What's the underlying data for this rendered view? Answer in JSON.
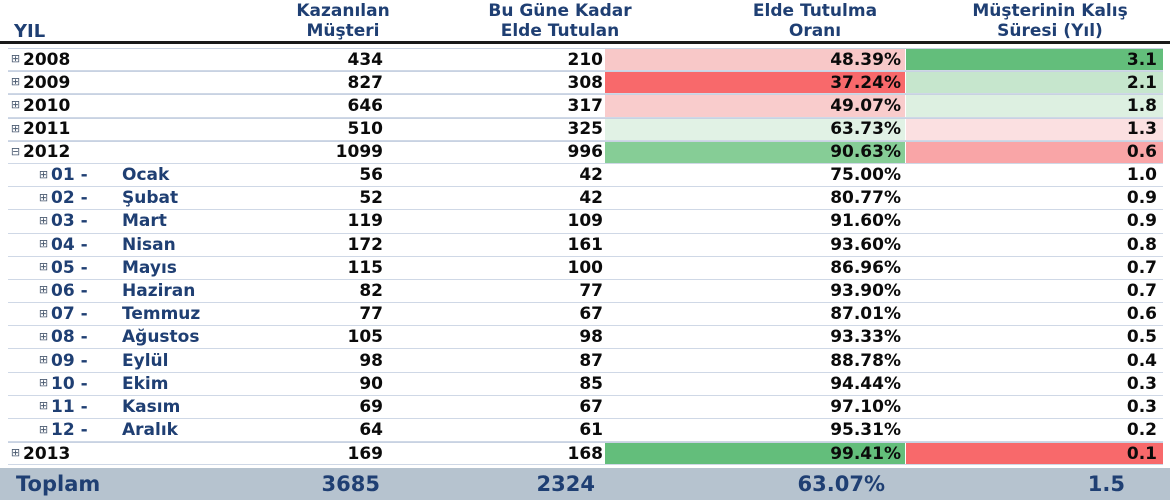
{
  "header": {
    "col0": "YIL",
    "col1_line1": "Kazanılan",
    "col1_line2": "Müşteri",
    "col2_line1": "Bu Güne Kadar",
    "col2_line2": "Elde Tutulan",
    "col3_line1": "Elde Tutulma",
    "col3_line2": "Oranı",
    "col4_line1": "Müşterinin Kalış",
    "col4_line2": "Süresi (Yıl)"
  },
  "rows": [
    {
      "type": "year",
      "toggle": "⊞",
      "label": "2008",
      "v1": "434",
      "v2": "210",
      "v3": "48.39%",
      "v4": "3.1",
      "c3": "#f8c8c8",
      "c4": "#63be7b"
    },
    {
      "type": "year",
      "toggle": "⊞",
      "label": "2009",
      "v1": "827",
      "v2": "308",
      "v3": "37.24%",
      "v4": "2.1",
      "c3": "#f8696b",
      "c4": "#c6e6cd"
    },
    {
      "type": "year",
      "toggle": "⊞",
      "label": "2010",
      "v1": "646",
      "v2": "317",
      "v3": "49.07%",
      "v4": "1.8",
      "c3": "#f9cccc",
      "c4": "#ddf0e1"
    },
    {
      "type": "year",
      "toggle": "⊞",
      "label": "2011",
      "v1": "510",
      "v2": "325",
      "v3": "63.73%",
      "v4": "1.3",
      "c3": "#e1f2e5",
      "c4": "#fbe0e1"
    },
    {
      "type": "year",
      "toggle": "⊟",
      "label": "2012",
      "v1": "1099",
      "v2": "996",
      "v3": "90.63%",
      "v4": "0.6",
      "c3": "#86cd96",
      "c4": "#f9a5a7"
    },
    {
      "type": "month",
      "toggle": "⊞",
      "num": "01 -",
      "name": "Ocak",
      "v1": "56",
      "v2": "42",
      "v3": "75.00%",
      "v4": "1.0"
    },
    {
      "type": "month",
      "toggle": "⊞",
      "num": "02 -",
      "name": "Şubat",
      "v1": "52",
      "v2": "42",
      "v3": "80.77%",
      "v4": "0.9"
    },
    {
      "type": "month",
      "toggle": "⊞",
      "num": "03 -",
      "name": "Mart",
      "v1": "119",
      "v2": "109",
      "v3": "91.60%",
      "v4": "0.9"
    },
    {
      "type": "month",
      "toggle": "⊞",
      "num": "04 -",
      "name": "Nisan",
      "v1": "172",
      "v2": "161",
      "v3": "93.60%",
      "v4": "0.8"
    },
    {
      "type": "month",
      "toggle": "⊞",
      "num": "05 -",
      "name": "Mayıs",
      "v1": "115",
      "v2": "100",
      "v3": "86.96%",
      "v4": "0.7"
    },
    {
      "type": "month",
      "toggle": "⊞",
      "num": "06 -",
      "name": "Haziran",
      "v1": "82",
      "v2": "77",
      "v3": "93.90%",
      "v4": "0.7"
    },
    {
      "type": "month",
      "toggle": "⊞",
      "num": "07 -",
      "name": "Temmuz",
      "v1": "77",
      "v2": "67",
      "v3": "87.01%",
      "v4": "0.6"
    },
    {
      "type": "month",
      "toggle": "⊞",
      "num": "08 -",
      "name": "Ağustos",
      "v1": "105",
      "v2": "98",
      "v3": "93.33%",
      "v4": "0.5"
    },
    {
      "type": "month",
      "toggle": "⊞",
      "num": "09 -",
      "name": "Eylül",
      "v1": "98",
      "v2": "87",
      "v3": "88.78%",
      "v4": "0.4"
    },
    {
      "type": "month",
      "toggle": "⊞",
      "num": "10 -",
      "name": "Ekim",
      "v1": "90",
      "v2": "85",
      "v3": "94.44%",
      "v4": "0.3"
    },
    {
      "type": "month",
      "toggle": "⊞",
      "num": "11 -",
      "name": "Kasım",
      "v1": "69",
      "v2": "67",
      "v3": "97.10%",
      "v4": "0.3"
    },
    {
      "type": "month",
      "toggle": "⊞",
      "num": "12 -",
      "name": "Aralık",
      "v1": "64",
      "v2": "61",
      "v3": "95.31%",
      "v4": "0.2"
    },
    {
      "type": "year",
      "toggle": "⊞",
      "label": "2013",
      "v1": "169",
      "v2": "168",
      "v3": "99.41%",
      "v4": "0.1",
      "c3": "#63be7b",
      "c4": "#f8696b"
    }
  ],
  "total": {
    "label": "Toplam",
    "v1": "3685",
    "v2": "2324",
    "v3": "63.07%",
    "v4": "1.5"
  },
  "colors": {
    "header_text": "#1f3f73",
    "total_bg": "#b6c3cf",
    "scale_green": "#63be7b",
    "scale_red": "#f8696b"
  }
}
